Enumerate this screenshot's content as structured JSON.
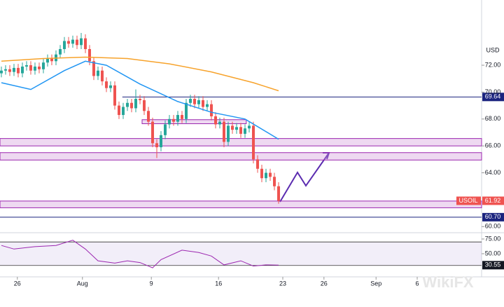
{
  "chart_data": {
    "type": "candlestick",
    "symbol": "USOIL",
    "currency": "USD",
    "watermark": "WikiFX",
    "up_color": "#26a69a",
    "down_color": "#ef5350",
    "x": [
      0,
      1,
      2,
      3,
      4,
      5,
      6,
      7,
      8,
      9,
      10,
      11,
      12,
      13,
      14,
      15,
      16,
      17,
      18,
      19,
      20,
      21,
      22,
      23,
      24,
      25,
      26,
      27,
      28,
      29,
      30,
      31,
      32,
      33,
      34,
      35,
      36,
      37,
      38,
      39,
      40,
      41,
      42,
      43,
      44,
      45,
      46,
      47,
      48,
      49,
      50,
      51,
      52,
      53,
      54,
      55,
      56,
      57,
      58,
      59,
      60,
      61,
      62,
      63,
      64,
      65,
      66
    ],
    "open": [
      71.4,
      71.6,
      71.7,
      71.5,
      71.8,
      71.4,
      71.9,
      72.0,
      71.6,
      71.9,
      71.7,
      72.2,
      72.5,
      72.3,
      72.8,
      73.2,
      73.8,
      73.6,
      73.9,
      73.5,
      74.0,
      73.2,
      72.3,
      71.2,
      71.6,
      70.8,
      70.3,
      70.5,
      69.0,
      68.3,
      68.9,
      69.2,
      68.8,
      69.5,
      69.4,
      68.6,
      67.8,
      66.2,
      65.9,
      66.8,
      67.6,
      68.0,
      67.8,
      68.3,
      68.0,
      69.2,
      69.5,
      69.1,
      69.4,
      68.9,
      69.1,
      68.2,
      67.6,
      67.8,
      66.3,
      67.5,
      67.2,
      67.4,
      66.9,
      67.3,
      67.5,
      65.0,
      64.3,
      63.6,
      64.0,
      63.7,
      63.0
    ],
    "high": [
      71.9,
      72.0,
      72.0,
      72.1,
      72.1,
      72.2,
      72.3,
      72.3,
      72.2,
      72.2,
      72.5,
      72.8,
      72.8,
      73.1,
      73.5,
      74.1,
      74.1,
      74.2,
      74.2,
      74.4,
      74.3,
      73.5,
      72.6,
      71.9,
      71.9,
      71.1,
      70.8,
      70.8,
      69.3,
      69.2,
      69.5,
      69.5,
      70.2,
      69.8,
      69.7,
      68.9,
      68.1,
      66.5,
      67.1,
      67.9,
      68.3,
      68.3,
      68.6,
      68.6,
      69.5,
      69.8,
      69.8,
      69.7,
      69.7,
      69.4,
      69.4,
      68.5,
      68.1,
      68.1,
      67.8,
      67.8,
      67.7,
      67.7,
      67.6,
      67.8,
      67.8,
      65.3,
      64.6,
      64.3,
      64.3,
      64.0,
      63.3
    ],
    "low": [
      71.1,
      71.3,
      71.2,
      71.2,
      71.1,
      71.1,
      71.6,
      71.3,
      71.3,
      71.4,
      71.4,
      71.9,
      72.0,
      72.0,
      72.5,
      72.9,
      73.3,
      73.3,
      73.2,
      73.2,
      72.9,
      72.0,
      70.9,
      70.9,
      70.5,
      70.0,
      70.0,
      68.7,
      68.0,
      68.0,
      68.6,
      68.5,
      68.5,
      69.1,
      68.3,
      67.5,
      65.9,
      65.1,
      65.6,
      66.5,
      67.3,
      67.5,
      67.5,
      67.7,
      67.7,
      68.9,
      68.8,
      68.8,
      68.6,
      68.6,
      67.9,
      67.3,
      67.3,
      65.9,
      66.0,
      66.9,
      66.9,
      66.6,
      66.6,
      67.0,
      64.7,
      64.0,
      63.3,
      63.3,
      63.4,
      62.7,
      61.7
    ],
    "close": [
      71.6,
      71.7,
      71.5,
      71.8,
      71.4,
      71.9,
      72.0,
      71.6,
      71.9,
      71.7,
      72.2,
      72.5,
      72.3,
      72.8,
      73.2,
      73.8,
      73.6,
      73.9,
      73.5,
      74.0,
      73.2,
      72.3,
      71.2,
      71.6,
      70.8,
      70.3,
      70.5,
      69.0,
      68.3,
      68.9,
      69.2,
      68.8,
      69.5,
      69.4,
      68.6,
      67.8,
      66.2,
      65.9,
      66.8,
      67.6,
      68.0,
      67.8,
      68.3,
      68.0,
      69.2,
      69.5,
      69.1,
      69.4,
      68.9,
      69.1,
      68.2,
      67.6,
      67.8,
      66.3,
      67.5,
      67.2,
      67.4,
      66.9,
      67.3,
      67.5,
      65.0,
      64.3,
      63.6,
      64.0,
      63.7,
      63.0,
      61.92
    ],
    "overlays": [
      {
        "color": "#f7a32c",
        "x": [
          0,
          10,
          20,
          30,
          40,
          50,
          60,
          66
        ],
        "values": [
          72.3,
          72.5,
          72.6,
          72.5,
          72.1,
          71.5,
          70.7,
          70.1
        ]
      },
      {
        "color": "#2196f3",
        "x": [
          0,
          7,
          15,
          20,
          25,
          33,
          42,
          50,
          58,
          66
        ],
        "values": [
          70.7,
          70.2,
          71.6,
          72.3,
          72.0,
          70.6,
          69.3,
          68.5,
          68.0,
          66.5
        ]
      }
    ],
    "zones": [
      {
        "range": [
          66.0,
          66.55
        ]
      },
      {
        "range": [
          64.95,
          65.5
        ]
      },
      {
        "range": [
          61.4,
          61.9
        ]
      },
      {
        "range": [
          67.65,
          67.95
        ],
        "x_range": [
          33.5,
          58.3
        ]
      }
    ],
    "levels": [
      {
        "value": 69.64,
        "label": "69.64",
        "x_start": 28.8
      },
      {
        "value": 60.7,
        "label": "60.70"
      }
    ],
    "xlim": [
      -0.33,
      114.33
    ],
    "ylim": [
      59.65,
      76.85
    ],
    "xticks": [
      {
        "value": 3.8,
        "label": "26"
      },
      {
        "value": 19.3,
        "label": "Aug"
      },
      {
        "value": 35.7,
        "label": "9"
      },
      {
        "value": 51.7,
        "label": "16"
      },
      {
        "value": 67,
        "label": "23"
      },
      {
        "value": 76.8,
        "label": "26"
      },
      {
        "value": 89.2,
        "label": "Sep"
      },
      {
        "value": 99,
        "label": "6"
      }
    ],
    "yticks": [
      {
        "value": 72,
        "label": "72.00"
      },
      {
        "value": 70,
        "label": "70.00"
      },
      {
        "value": 68,
        "label": "68.00"
      },
      {
        "value": 66,
        "label": "66.00"
      },
      {
        "value": 64,
        "label": "64.00"
      },
      {
        "value": 60,
        "label": "60.00"
      }
    ],
    "rsi": {
      "color": "#9c27b0",
      "x": [
        0,
        3,
        8,
        13,
        17,
        20,
        23,
        27,
        30,
        33,
        36,
        38,
        43,
        47,
        50,
        53,
        57,
        60,
        63,
        66
      ],
      "values": [
        64,
        58,
        62,
        64,
        73,
        58,
        38,
        34,
        38,
        35,
        26,
        40,
        56,
        52,
        46,
        31,
        38,
        29,
        31,
        30.55
      ],
      "band": [
        30,
        70
      ],
      "ylim": [
        10.7,
        84.5
      ],
      "yticks": [
        {
          "value": 75,
          "label": "75.00"
        },
        {
          "value": 50,
          "label": "50.00"
        }
      ]
    }
  }
}
